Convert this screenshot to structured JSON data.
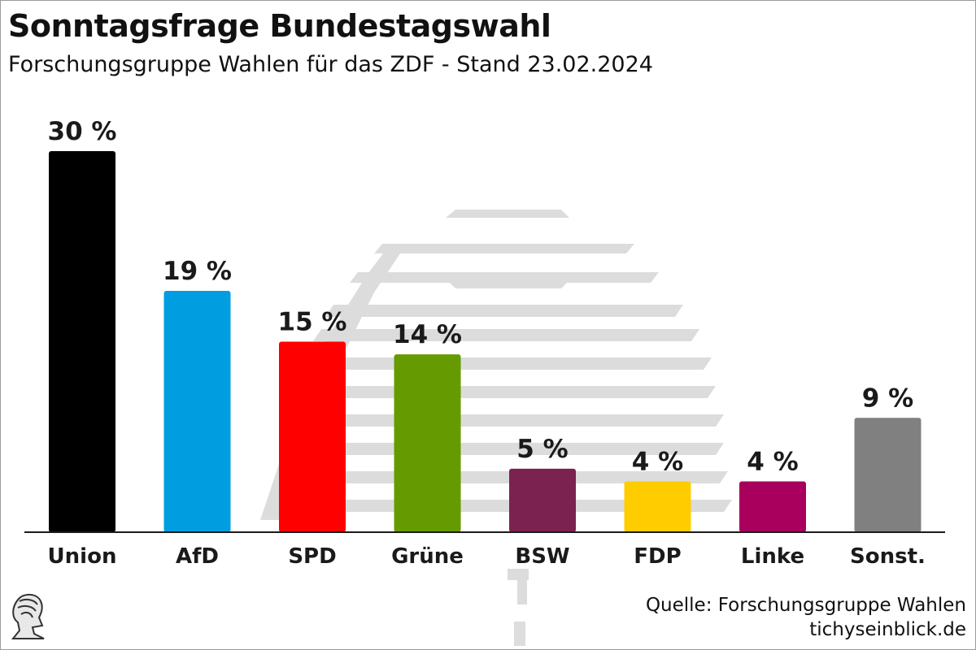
{
  "title": "Sonntagsfrage Bundestagswahl",
  "subtitle": "Forschungsgruppe Wahlen für das ZDF - Stand 23.02.2024",
  "source": {
    "line1": "Quelle: Forschungsgruppe Wahlen",
    "line2": "tichyseinblick.de"
  },
  "logo_icon": "bust-logo-icon",
  "chart_data": {
    "type": "bar",
    "categories": [
      "Union",
      "AfD",
      "SPD",
      "Grüne",
      "BSW",
      "FDP",
      "Linke",
      "Sonst."
    ],
    "values": [
      30,
      19,
      15,
      14,
      5,
      4,
      4,
      9
    ],
    "data_labels": [
      "30 %",
      "19 %",
      "15 %",
      "14 %",
      "5 %",
      "4 %",
      "4 %",
      "9 %"
    ],
    "colors": [
      "#000000",
      "#009ee0",
      "#ff0000",
      "#659a00",
      "#7c2250",
      "#ffcc00",
      "#a8005c",
      "#808080"
    ],
    "ylim": [
      0,
      30
    ],
    "grid": false
  }
}
